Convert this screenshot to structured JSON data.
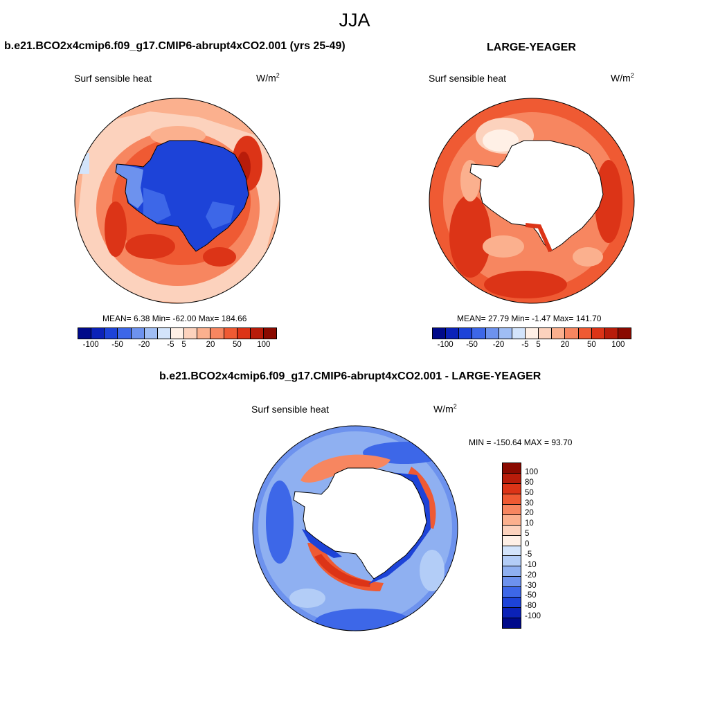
{
  "season": "JJA",
  "panels": [
    {
      "title": "b.e21.BCO2x4cmip6.f09_g17.CMIP6-abrupt4xCO2.001 (yrs 25-49)",
      "variable": "Surf sensible heat",
      "units_base": "W/m",
      "units_exp": "2",
      "stats": "MEAN=   6.38  Min= -62.00  Max= 184.66"
    },
    {
      "title": "LARGE-YEAGER",
      "variable": "Surf sensible heat",
      "units_base": "W/m",
      "units_exp": "2",
      "stats": "MEAN=  27.79  Min=  -1.47  Max= 141.70"
    },
    {
      "title": "b.e21.BCO2x4cmip6.f09_g17.CMIP6-abrupt4xCO2.001 - LARGE-YEAGER",
      "variable": "Surf sensible heat",
      "units_base": "W/m",
      "units_exp": "2",
      "stats": "MIN = -150.64 MAX =  93.70"
    }
  ],
  "chart_data": [
    {
      "type": "heatmap",
      "projection": "south-polar-stereographic",
      "title": "b.e21.BCO2x4cmip6.f09_g17.CMIP6-abrupt4xCO2.001 (yrs 25-49)",
      "variable": "Surf sensible heat",
      "units": "W/m2",
      "mean": 6.38,
      "min": -62.0,
      "max": 184.66,
      "colorbar": {
        "orientation": "horizontal",
        "colors": [
          "#000a8a",
          "#0b22b8",
          "#1d43d8",
          "#3d67e8",
          "#6d92ee",
          "#9fbdf4",
          "#d3e4fb",
          "#fff0e6",
          "#fcd2bd",
          "#fbb08e",
          "#f78660",
          "#ef5a33",
          "#dc3417",
          "#b81c0a",
          "#8a0a00"
        ],
        "tick_labels": [
          "-100",
          "-50",
          "-20",
          "-5",
          "5",
          "20",
          "50",
          "100"
        ]
      }
    },
    {
      "type": "heatmap",
      "projection": "south-polar-stereographic",
      "title": "LARGE-YEAGER",
      "variable": "Surf sensible heat",
      "units": "W/m2",
      "mean": 27.79,
      "min": -1.47,
      "max": 141.7,
      "colorbar": {
        "orientation": "horizontal",
        "colors": [
          "#000a8a",
          "#0b22b8",
          "#1d43d8",
          "#3d67e8",
          "#6d92ee",
          "#9fbdf4",
          "#d3e4fb",
          "#fff0e6",
          "#fcd2bd",
          "#fbb08e",
          "#f78660",
          "#ef5a33",
          "#dc3417",
          "#b81c0a",
          "#8a0a00"
        ],
        "tick_labels": [
          "-100",
          "-50",
          "-20",
          "-5",
          "5",
          "20",
          "50",
          "100"
        ]
      }
    },
    {
      "type": "heatmap",
      "projection": "south-polar-stereographic",
      "title": "b.e21.BCO2x4cmip6.f09_g17.CMIP6-abrupt4xCO2.001 - LARGE-YEAGER",
      "variable": "Surf sensible heat",
      "units": "W/m2",
      "min": -150.64,
      "max": 93.7,
      "colorbar": {
        "orientation": "vertical",
        "colors": [
          "#8a0a00",
          "#b81c0a",
          "#dc3417",
          "#ef5a33",
          "#f78660",
          "#fbb08e",
          "#fcd2bd",
          "#fff0e6",
          "#d3e4fb",
          "#b3cdf7",
          "#8fb0f1",
          "#6d92ee",
          "#3d67e8",
          "#1d43d8",
          "#0b22b8",
          "#000a8a"
        ],
        "tick_labels": [
          "100",
          "80",
          "50",
          "30",
          "20",
          "10",
          "5",
          "0",
          "-5",
          "-10",
          "-20",
          "-30",
          "-50",
          "-80",
          "-100"
        ]
      }
    }
  ]
}
